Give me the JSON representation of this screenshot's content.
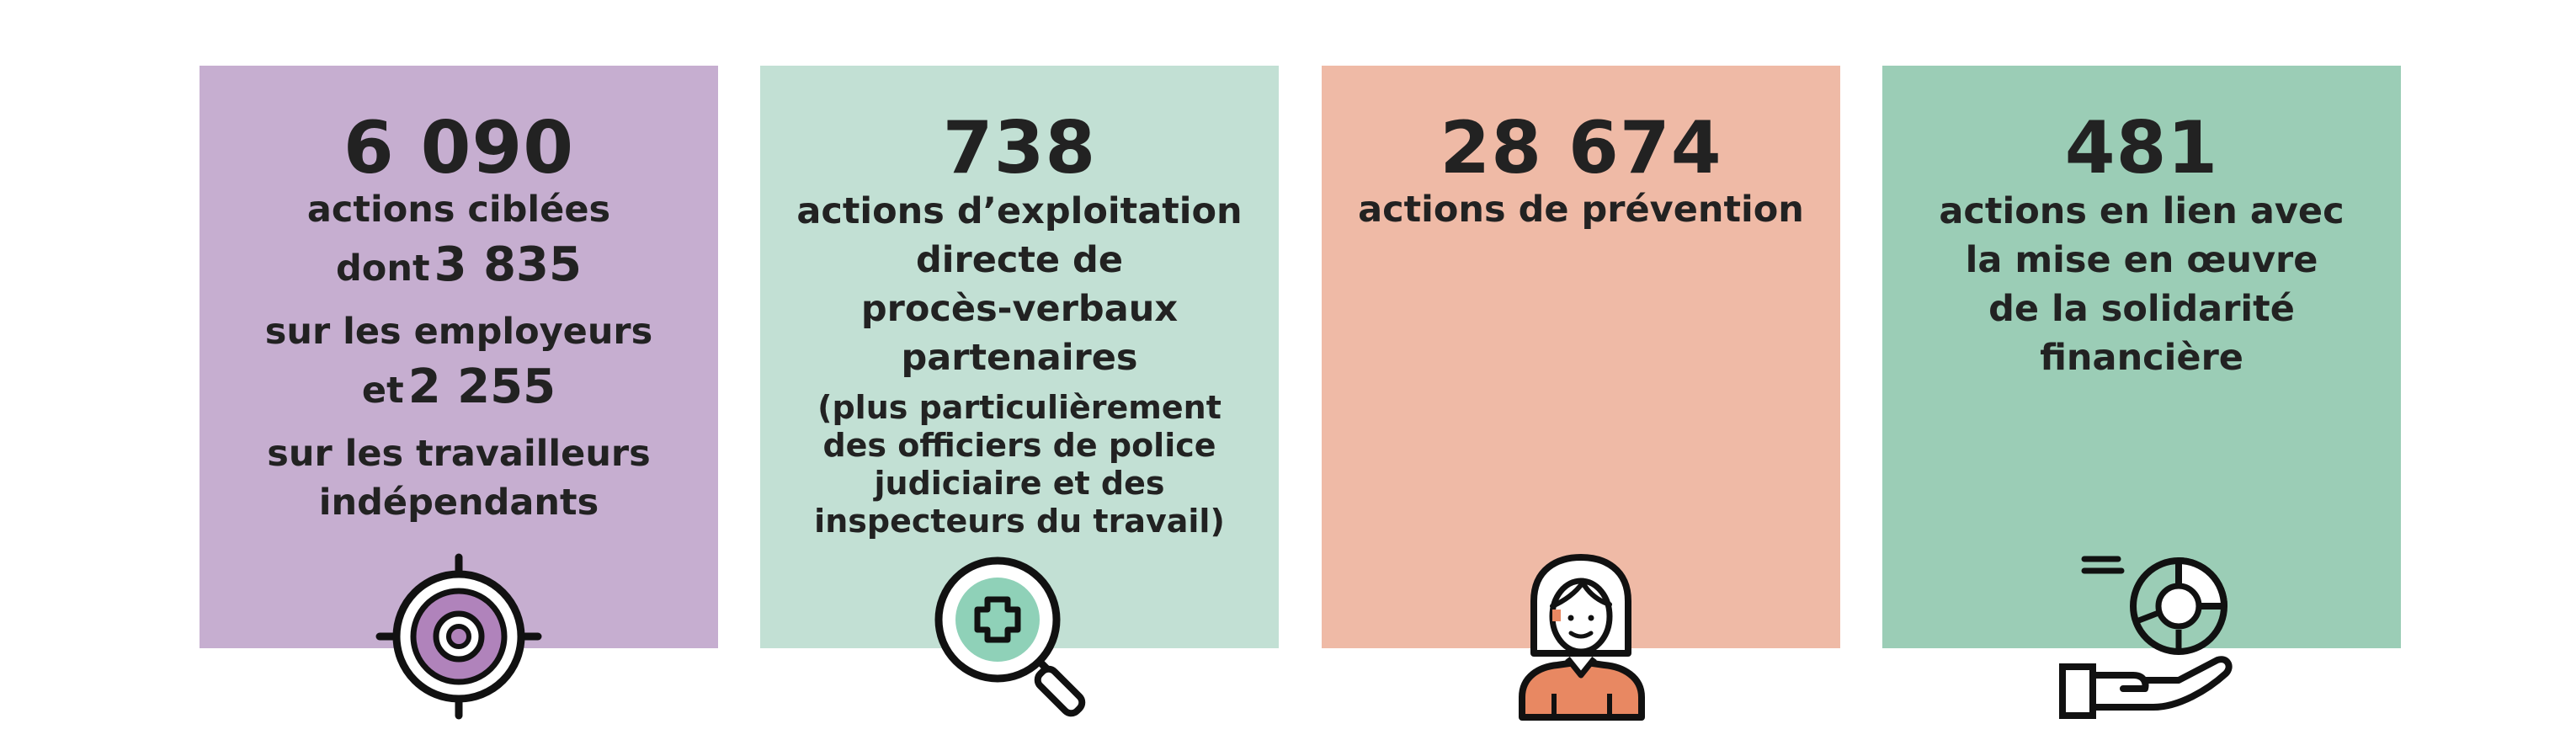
{
  "colors": {
    "card_1": "#c6aed0",
    "card_2": "#c2e0d4",
    "card_3": "#efbaa6",
    "card_4": "#9bcdb6",
    "purple_accent": "#b083bb",
    "mint_accent": "#8fd1b8",
    "orange_accent": "#e88862",
    "outline": "#111111"
  },
  "cards": [
    {
      "number": "6 090",
      "label": "actions ciblées",
      "line2_prefix": "dont",
      "line2_number": "3 835",
      "line3": "sur les employeurs",
      "line4_prefix": "et",
      "line4_number": "2 255",
      "line5": "sur les travailleurs",
      "line6": "indépendants",
      "icon": "target-icon"
    },
    {
      "number": "738",
      "label_lines": [
        "actions d’exploitation",
        "directe de",
        "procès-verbaux",
        "partenaires"
      ],
      "note_lines": [
        "(plus particulièrement",
        "des officiers de police",
        "judiciaire et des",
        "inspecteurs du travail)"
      ],
      "icon": "magnifier-plus-icon"
    },
    {
      "number": "28 674",
      "label": "actions de prévention",
      "icon": "person-icon"
    },
    {
      "number": "481",
      "label_lines": [
        "actions en lien avec",
        "la mise en œuvre",
        "de la solidarité",
        "financière"
      ],
      "icon": "hand-pie-chart-icon"
    }
  ]
}
